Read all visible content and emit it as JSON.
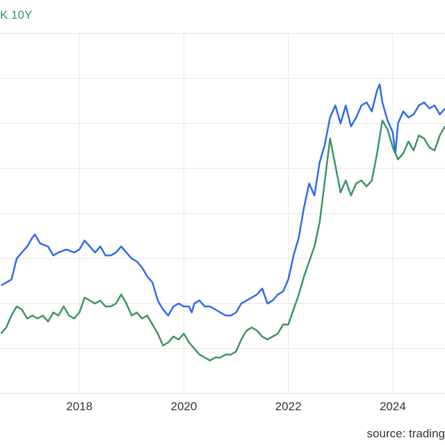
{
  "legend": {
    "partial_label": "K 10Y"
  },
  "source": "source: trading",
  "colors": {
    "series_blue": "#3068f0",
    "series_green": "#3c9462",
    "grid": "#e6e6e6",
    "axis_text": "#333333",
    "legend_text": "#3c9462"
  },
  "chart_data": {
    "type": "line",
    "xlim": [
      2016.48,
      2025.0
    ],
    "ylim": [
      -1.0,
      5.0
    ],
    "x_ticks": [
      "2018",
      "2020",
      "2022",
      "2024"
    ],
    "grid": true,
    "series": [
      {
        "color": "blue",
        "points": [
          [
            2016.5,
            0.8
          ],
          [
            2016.6,
            0.85
          ],
          [
            2016.7,
            0.9
          ],
          [
            2016.8,
            1.25
          ],
          [
            2016.9,
            1.35
          ],
          [
            2017.0,
            1.45
          ],
          [
            2017.1,
            1.6
          ],
          [
            2017.15,
            1.65
          ],
          [
            2017.25,
            1.5
          ],
          [
            2017.4,
            1.45
          ],
          [
            2017.5,
            1.3
          ],
          [
            2017.6,
            1.35
          ],
          [
            2017.75,
            1.4
          ],
          [
            2017.9,
            1.35
          ],
          [
            2018.0,
            1.4
          ],
          [
            2018.1,
            1.55
          ],
          [
            2018.2,
            1.45
          ],
          [
            2018.3,
            1.35
          ],
          [
            2018.4,
            1.45
          ],
          [
            2018.5,
            1.3
          ],
          [
            2018.6,
            1.3
          ],
          [
            2018.7,
            1.35
          ],
          [
            2018.8,
            1.45
          ],
          [
            2018.9,
            1.35
          ],
          [
            2019.0,
            1.25
          ],
          [
            2019.1,
            1.2
          ],
          [
            2019.2,
            1.1
          ],
          [
            2019.3,
            0.95
          ],
          [
            2019.4,
            0.85
          ],
          [
            2019.5,
            0.55
          ],
          [
            2019.6,
            0.4
          ],
          [
            2019.7,
            0.3
          ],
          [
            2019.8,
            0.45
          ],
          [
            2019.9,
            0.5
          ],
          [
            2020.0,
            0.45
          ],
          [
            2020.1,
            0.45
          ],
          [
            2020.15,
            0.35
          ],
          [
            2020.2,
            0.5
          ],
          [
            2020.3,
            0.55
          ],
          [
            2020.4,
            0.45
          ],
          [
            2020.5,
            0.45
          ],
          [
            2020.6,
            0.4
          ],
          [
            2020.7,
            0.35
          ],
          [
            2020.8,
            0.3
          ],
          [
            2020.9,
            0.3
          ],
          [
            2021.0,
            0.35
          ],
          [
            2021.1,
            0.5
          ],
          [
            2021.2,
            0.55
          ],
          [
            2021.3,
            0.6
          ],
          [
            2021.4,
            0.65
          ],
          [
            2021.5,
            0.75
          ],
          [
            2021.6,
            0.5
          ],
          [
            2021.7,
            0.55
          ],
          [
            2021.8,
            0.65
          ],
          [
            2021.9,
            0.7
          ],
          [
            2022.0,
            0.9
          ],
          [
            2022.1,
            1.3
          ],
          [
            2022.2,
            1.6
          ],
          [
            2022.3,
            2.1
          ],
          [
            2022.4,
            2.5
          ],
          [
            2022.5,
            2.3
          ],
          [
            2022.6,
            2.85
          ],
          [
            2022.7,
            3.15
          ],
          [
            2022.8,
            3.6
          ],
          [
            2022.9,
            3.8
          ],
          [
            2023.0,
            3.5
          ],
          [
            2023.1,
            3.8
          ],
          [
            2023.2,
            3.45
          ],
          [
            2023.3,
            3.6
          ],
          [
            2023.4,
            3.8
          ],
          [
            2023.5,
            3.85
          ],
          [
            2023.6,
            3.7
          ],
          [
            2023.7,
            4.05
          ],
          [
            2023.75,
            4.15
          ],
          [
            2023.8,
            3.85
          ],
          [
            2023.9,
            3.55
          ],
          [
            2024.0,
            3.35
          ],
          [
            2024.05,
            3.0
          ],
          [
            2024.1,
            3.5
          ],
          [
            2024.2,
            3.7
          ],
          [
            2024.3,
            3.6
          ],
          [
            2024.4,
            3.65
          ],
          [
            2024.5,
            3.8
          ],
          [
            2024.6,
            3.85
          ],
          [
            2024.7,
            3.75
          ],
          [
            2024.8,
            3.8
          ],
          [
            2024.9,
            3.65
          ],
          [
            2025.0,
            3.75
          ]
        ]
      },
      {
        "color": "green",
        "points": [
          [
            2016.5,
            0.0
          ],
          [
            2016.6,
            0.1
          ],
          [
            2016.7,
            0.3
          ],
          [
            2016.8,
            0.45
          ],
          [
            2016.9,
            0.4
          ],
          [
            2017.0,
            0.25
          ],
          [
            2017.1,
            0.3
          ],
          [
            2017.2,
            0.25
          ],
          [
            2017.3,
            0.3
          ],
          [
            2017.4,
            0.2
          ],
          [
            2017.5,
            0.35
          ],
          [
            2017.6,
            0.3
          ],
          [
            2017.7,
            0.45
          ],
          [
            2017.8,
            0.3
          ],
          [
            2017.9,
            0.25
          ],
          [
            2018.0,
            0.35
          ],
          [
            2018.1,
            0.6
          ],
          [
            2018.2,
            0.55
          ],
          [
            2018.3,
            0.5
          ],
          [
            2018.4,
            0.55
          ],
          [
            2018.5,
            0.45
          ],
          [
            2018.6,
            0.45
          ],
          [
            2018.7,
            0.5
          ],
          [
            2018.8,
            0.65
          ],
          [
            2018.9,
            0.5
          ],
          [
            2019.0,
            0.3
          ],
          [
            2019.1,
            0.35
          ],
          [
            2019.2,
            0.25
          ],
          [
            2019.3,
            0.3
          ],
          [
            2019.4,
            0.15
          ],
          [
            2019.5,
            0.0
          ],
          [
            2019.6,
            -0.2
          ],
          [
            2019.7,
            -0.15
          ],
          [
            2019.8,
            -0.05
          ],
          [
            2019.9,
            -0.1
          ],
          [
            2020.0,
            0.0
          ],
          [
            2020.1,
            -0.15
          ],
          [
            2020.2,
            -0.25
          ],
          [
            2020.3,
            -0.35
          ],
          [
            2020.4,
            -0.4
          ],
          [
            2020.5,
            -0.45
          ],
          [
            2020.6,
            -0.4
          ],
          [
            2020.7,
            -0.4
          ],
          [
            2020.8,
            -0.35
          ],
          [
            2020.9,
            -0.35
          ],
          [
            2021.0,
            -0.3
          ],
          [
            2021.1,
            -0.1
          ],
          [
            2021.2,
            0.05
          ],
          [
            2021.3,
            0.1
          ],
          [
            2021.4,
            0.05
          ],
          [
            2021.5,
            -0.05
          ],
          [
            2021.6,
            -0.1
          ],
          [
            2021.7,
            -0.05
          ],
          [
            2021.8,
            0.0
          ],
          [
            2021.9,
            0.15
          ],
          [
            2022.0,
            0.15
          ],
          [
            2022.1,
            0.4
          ],
          [
            2022.2,
            0.65
          ],
          [
            2022.3,
            0.95
          ],
          [
            2022.4,
            1.2
          ],
          [
            2022.5,
            1.45
          ],
          [
            2022.6,
            1.85
          ],
          [
            2022.7,
            2.55
          ],
          [
            2022.8,
            3.25
          ],
          [
            2022.9,
            2.8
          ],
          [
            2023.0,
            2.35
          ],
          [
            2023.1,
            2.55
          ],
          [
            2023.2,
            2.3
          ],
          [
            2023.3,
            2.5
          ],
          [
            2023.4,
            2.55
          ],
          [
            2023.5,
            2.45
          ],
          [
            2023.6,
            2.55
          ],
          [
            2023.7,
            3.0
          ],
          [
            2023.8,
            3.55
          ],
          [
            2023.9,
            3.4
          ],
          [
            2024.0,
            3.1
          ],
          [
            2024.1,
            2.9
          ],
          [
            2024.2,
            3.0
          ],
          [
            2024.3,
            3.2
          ],
          [
            2024.4,
            3.05
          ],
          [
            2024.5,
            3.3
          ],
          [
            2024.6,
            3.25
          ],
          [
            2024.7,
            3.1
          ],
          [
            2024.8,
            3.05
          ],
          [
            2024.9,
            3.3
          ],
          [
            2025.0,
            3.45
          ]
        ]
      }
    ]
  }
}
